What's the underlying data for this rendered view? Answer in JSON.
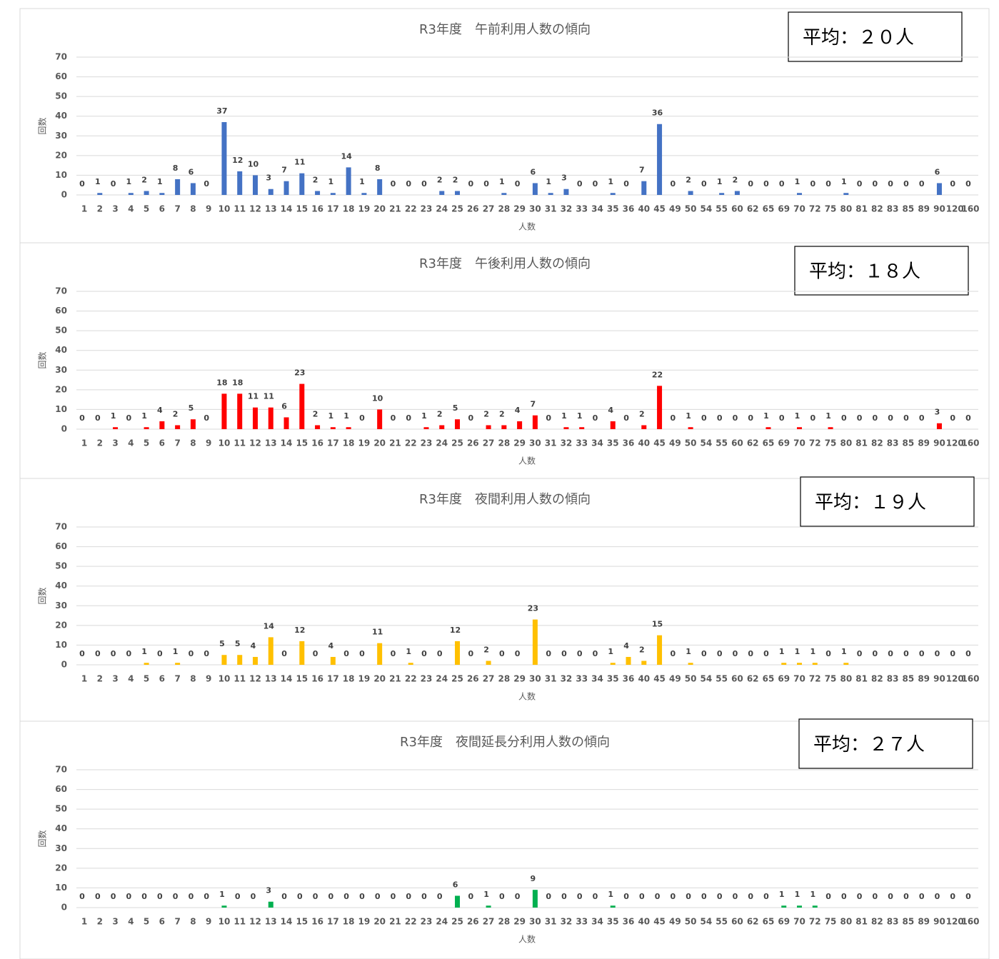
{
  "chart_data": [
    {
      "type": "bar",
      "title": "R3年度　午前利用人数の傾向",
      "annotation": "平均：２０人",
      "x_label": "人数",
      "y_label": "回数",
      "color": "#4472c4",
      "categories": [
        "1",
        "2",
        "3",
        "4",
        "5",
        "6",
        "7",
        "8",
        "9",
        "10",
        "11",
        "12",
        "13",
        "14",
        "15",
        "16",
        "17",
        "18",
        "19",
        "20",
        "21",
        "22",
        "23",
        "24",
        "25",
        "26",
        "27",
        "28",
        "29",
        "30",
        "31",
        "32",
        "33",
        "34",
        "35",
        "36",
        "40",
        "45",
        "49",
        "50",
        "54",
        "55",
        "60",
        "62",
        "65",
        "69",
        "70",
        "72",
        "75",
        "80",
        "81",
        "82",
        "83",
        "85",
        "89",
        "90",
        "120",
        "160"
      ],
      "values": [
        0,
        1,
        0,
        1,
        2,
        1,
        8,
        6,
        0,
        37,
        12,
        10,
        3,
        7,
        11,
        2,
        1,
        14,
        1,
        8,
        0,
        0,
        0,
        2,
        2,
        0,
        0,
        1,
        0,
        6,
        1,
        3,
        0,
        0,
        1,
        0,
        7,
        36,
        0,
        2,
        0,
        1,
        2,
        0,
        0,
        0,
        1,
        0,
        0,
        1,
        0,
        0,
        0,
        0,
        0,
        6,
        0,
        0
      ],
      "ylim": [
        0,
        70
      ],
      "yticks": [
        0,
        10,
        20,
        30,
        40,
        50,
        60,
        70
      ],
      "grid": true
    },
    {
      "type": "bar",
      "title": "R3年度　午後利用人数の傾向",
      "annotation": "平均：１８人",
      "x_label": "人数",
      "y_label": "回数",
      "color": "#ff0000",
      "categories": [
        "1",
        "2",
        "3",
        "4",
        "5",
        "6",
        "7",
        "8",
        "9",
        "10",
        "11",
        "12",
        "13",
        "14",
        "15",
        "16",
        "17",
        "18",
        "19",
        "20",
        "21",
        "22",
        "23",
        "24",
        "25",
        "26",
        "27",
        "28",
        "29",
        "30",
        "31",
        "32",
        "33",
        "34",
        "35",
        "36",
        "40",
        "45",
        "49",
        "50",
        "54",
        "55",
        "60",
        "62",
        "65",
        "69",
        "70",
        "72",
        "75",
        "80",
        "81",
        "82",
        "83",
        "85",
        "89",
        "90",
        "120",
        "160"
      ],
      "values": [
        0,
        0,
        1,
        0,
        1,
        4,
        2,
        5,
        0,
        18,
        18,
        11,
        11,
        6,
        23,
        2,
        1,
        1,
        0,
        10,
        0,
        0,
        1,
        2,
        5,
        0,
        2,
        2,
        4,
        7,
        0,
        1,
        1,
        0,
        4,
        0,
        2,
        22,
        0,
        1,
        0,
        0,
        0,
        0,
        1,
        0,
        1,
        0,
        1,
        0,
        0,
        0,
        0,
        0,
        0,
        3,
        0,
        0
      ],
      "ylim": [
        0,
        70
      ],
      "yticks": [
        0,
        10,
        20,
        30,
        40,
        50,
        60,
        70
      ],
      "grid": true
    },
    {
      "type": "bar",
      "title": "R3年度　夜間利用人数の傾向",
      "annotation": "平均：１９人",
      "x_label": "人数",
      "y_label": "回数",
      "color": "#ffc000",
      "categories": [
        "1",
        "2",
        "3",
        "4",
        "5",
        "6",
        "7",
        "8",
        "9",
        "10",
        "11",
        "12",
        "13",
        "14",
        "15",
        "16",
        "17",
        "18",
        "19",
        "20",
        "21",
        "22",
        "23",
        "24",
        "25",
        "26",
        "27",
        "28",
        "29",
        "30",
        "31",
        "32",
        "33",
        "34",
        "35",
        "36",
        "40",
        "45",
        "49",
        "50",
        "54",
        "55",
        "60",
        "62",
        "65",
        "69",
        "70",
        "72",
        "75",
        "80",
        "81",
        "82",
        "83",
        "85",
        "89",
        "90",
        "120",
        "160"
      ],
      "values": [
        0,
        0,
        0,
        0,
        1,
        0,
        1,
        0,
        0,
        5,
        5,
        4,
        14,
        0,
        12,
        0,
        4,
        0,
        0,
        11,
        0,
        1,
        0,
        0,
        12,
        0,
        2,
        0,
        0,
        23,
        0,
        0,
        0,
        0,
        1,
        4,
        2,
        15,
        0,
        1,
        0,
        0,
        0,
        0,
        0,
        1,
        1,
        1,
        0,
        1,
        0,
        0,
        0,
        0,
        0,
        0,
        0,
        0
      ],
      "ylim": [
        0,
        70
      ],
      "yticks": [
        0,
        10,
        20,
        30,
        40,
        50,
        60,
        70
      ],
      "grid": true
    },
    {
      "type": "bar",
      "title": "R3年度　夜間延長分利用人数の傾向",
      "annotation": "平均：２７人",
      "x_label": "人数",
      "y_label": "回数",
      "color": "#00b050",
      "categories": [
        "1",
        "2",
        "3",
        "4",
        "5",
        "6",
        "7",
        "8",
        "9",
        "10",
        "11",
        "12",
        "13",
        "14",
        "15",
        "16",
        "17",
        "18",
        "19",
        "20",
        "21",
        "22",
        "23",
        "24",
        "25",
        "26",
        "27",
        "28",
        "29",
        "30",
        "31",
        "32",
        "33",
        "34",
        "35",
        "36",
        "40",
        "45",
        "49",
        "50",
        "54",
        "55",
        "60",
        "62",
        "65",
        "69",
        "70",
        "72",
        "75",
        "80",
        "81",
        "82",
        "83",
        "85",
        "89",
        "90",
        "120",
        "160"
      ],
      "values": [
        0,
        0,
        0,
        0,
        0,
        0,
        0,
        0,
        0,
        1,
        0,
        0,
        3,
        0,
        0,
        0,
        0,
        0,
        0,
        0,
        0,
        0,
        0,
        0,
        6,
        0,
        1,
        0,
        0,
        9,
        0,
        0,
        0,
        0,
        1,
        0,
        0,
        0,
        0,
        0,
        0,
        0,
        0,
        0,
        0,
        1,
        1,
        1,
        0,
        0,
        0,
        0,
        0,
        0,
        0,
        0,
        0,
        0
      ],
      "ylim": [
        0,
        70
      ],
      "yticks": [
        0,
        10,
        20,
        30,
        40,
        50,
        60,
        70
      ],
      "grid": true
    }
  ]
}
